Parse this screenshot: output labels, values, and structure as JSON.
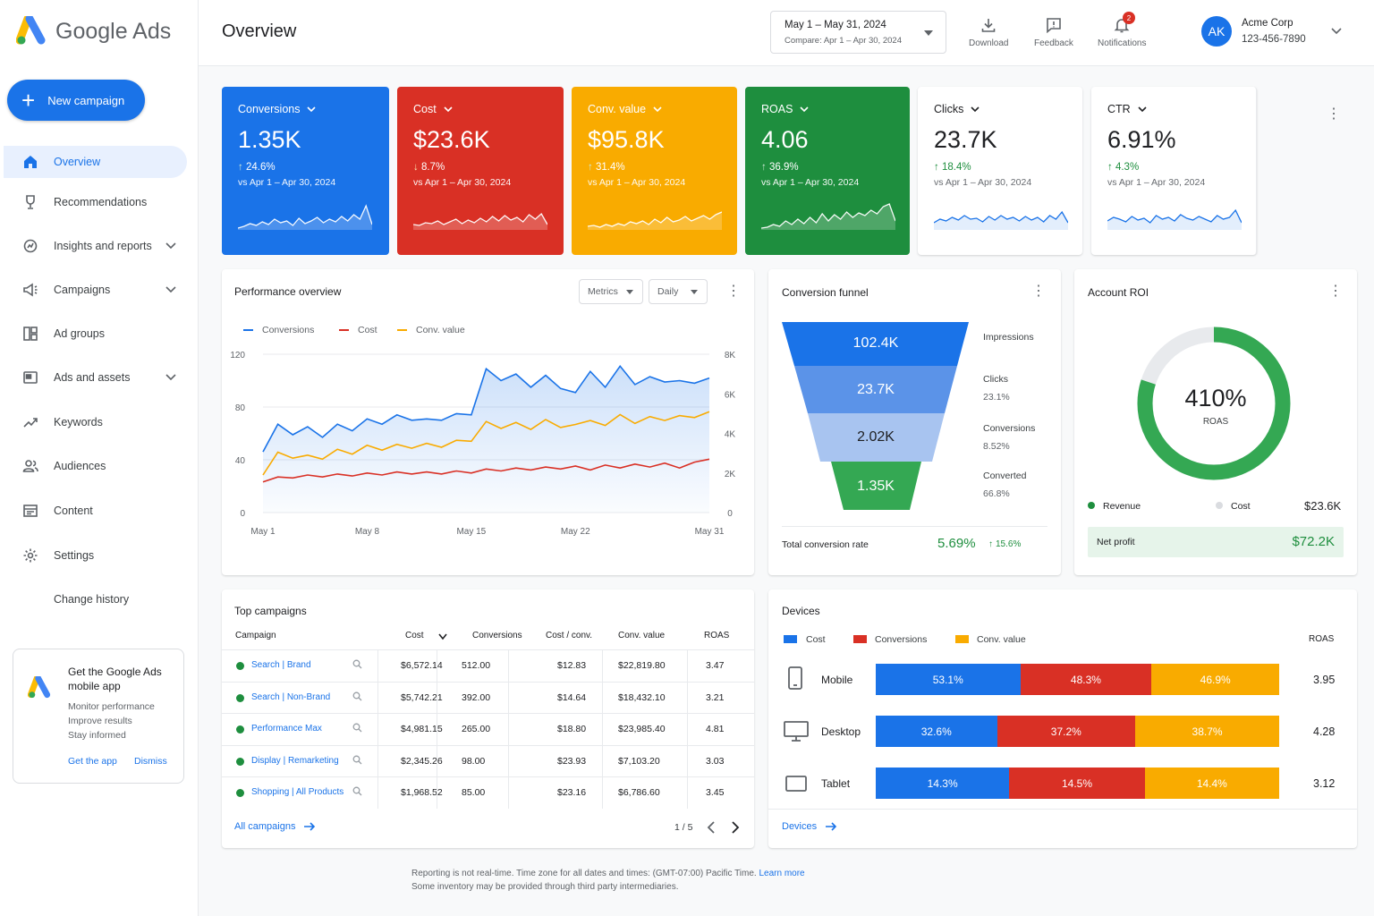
{
  "app": {
    "logo_text": "Google Ads",
    "page_title": "Overview"
  },
  "sidebar": {
    "new_campaign": "New campaign",
    "items": [
      {
        "label": "Overview"
      },
      {
        "label": "Recommendations"
      },
      {
        "label": "Insights and reports"
      },
      {
        "label": "Campaigns"
      },
      {
        "label": "Ad groups"
      },
      {
        "label": "Ads and assets"
      },
      {
        "label": "Keywords"
      },
      {
        "label": "Audiences"
      },
      {
        "label": "Content"
      },
      {
        "label": "Settings"
      },
      {
        "label": "Change history"
      }
    ],
    "promo": {
      "title": "Get the Google Ads mobile app",
      "lines": [
        "Monitor performance",
        "Improve results",
        "Stay informed"
      ],
      "get_app": "Get the app",
      "dismiss": "Dismiss"
    }
  },
  "header": {
    "date_range": "May 1 – May 31, 2024",
    "compare": "Compare: Apr 1 – Apr 30, 2024",
    "download": "Download",
    "feedback": "Feedback",
    "notifications": "Notifications",
    "notification_count": "2",
    "avatar_initials": "AK",
    "account_name": "Acme Corp",
    "account_id": "123-456-7890"
  },
  "kpis": [
    {
      "label": "Conversions",
      "value": "1.35K",
      "delta": "24.6%",
      "vs": "vs Apr 1 – Apr 30, 2024",
      "color": "#1a73e8",
      "dir": "up"
    },
    {
      "label": "Cost",
      "value": "$23.6K",
      "delta": "8.7%",
      "vs": "vs Apr 1 – Apr 30, 2024",
      "color": "#d93025",
      "dir": "down"
    },
    {
      "label": "Conv. value",
      "value": "$95.8K",
      "delta": "31.4%",
      "vs": "vs Apr 1 – Apr 30, 2024",
      "color": "#f9ab00",
      "dir": "up"
    },
    {
      "label": "ROAS",
      "value": "4.06",
      "delta": "36.9%",
      "vs": "vs Apr 1 – Apr 30, 2024",
      "color": "#1e8e3e",
      "dir": "up"
    },
    {
      "label": "Clicks",
      "value": "23.7K",
      "delta": "18.4%",
      "vs": "vs Apr 1 – Apr 30, 2024",
      "color": "#ffffff",
      "dir": "up"
    },
    {
      "label": "CTR",
      "value": "6.91%",
      "delta": "4.3%",
      "vs": "vs Apr 1 – Apr 30, 2024",
      "color": "#ffffff",
      "dir": "up"
    }
  ],
  "performance": {
    "title": "Performance overview",
    "metrics_select": "Metrics",
    "period_select": "Daily"
  },
  "chart_data": {
    "type": "line",
    "x": [
      "May 1",
      "May 2",
      "May 3",
      "May 4",
      "May 5",
      "May 6",
      "May 7",
      "May 8",
      "May 9",
      "May 10",
      "May 11",
      "May 12",
      "May 13",
      "May 14",
      "May 15",
      "May 16",
      "May 17",
      "May 18",
      "May 19",
      "May 20",
      "May 21",
      "May 22",
      "May 23",
      "May 24",
      "May 25",
      "May 26",
      "May 27",
      "May 28",
      "May 29",
      "May 30",
      "May 31"
    ],
    "x_tick_labels": [
      "May 1",
      "May 8",
      "May 15",
      "May 22",
      "May 31"
    ],
    "series": [
      {
        "name": "Conversions",
        "axis": "left",
        "color": "#1a73e8",
        "values": [
          46,
          67,
          59,
          65,
          57,
          67,
          62,
          71,
          67,
          74,
          70,
          71,
          70,
          75,
          74,
          109,
          100,
          105,
          95,
          104,
          94,
          91,
          107,
          95,
          111,
          97,
          103,
          99,
          100,
          98,
          102
        ]
      },
      {
        "name": "Cost",
        "axis": "right",
        "color": "#d93025",
        "values": [
          1550,
          1800,
          1750,
          1900,
          1800,
          1950,
          1850,
          2000,
          1900,
          2050,
          1950,
          2050,
          1950,
          2100,
          2000,
          2200,
          2100,
          2250,
          2150,
          2300,
          2200,
          2350,
          2150,
          2400,
          2250,
          2450,
          2300,
          2500,
          2250,
          2550,
          2700
        ]
      },
      {
        "name": "Conv. value",
        "axis": "right",
        "color": "#f9ab00",
        "values": [
          1900,
          3050,
          2750,
          2900,
          2700,
          3200,
          2950,
          3400,
          3150,
          3450,
          3250,
          3500,
          3300,
          3650,
          3600,
          4600,
          4250,
          4550,
          4200,
          4700,
          4300,
          4450,
          4650,
          4400,
          4950,
          4500,
          4850,
          4650,
          4900,
          4800,
          5100
        ]
      }
    ],
    "y_left": {
      "ticks": [
        0,
        40,
        80,
        120
      ],
      "ylim": [
        0,
        120
      ]
    },
    "y_right": {
      "ticks": [
        "0",
        "2K",
        "4K",
        "6K",
        "8K"
      ],
      "ylim": [
        0,
        8000
      ]
    },
    "grid": true,
    "legend": "top-left"
  },
  "funnel": {
    "title": "Conversion funnel",
    "stages": [
      {
        "value": "102.4K",
        "label": "Impressions",
        "pct": ""
      },
      {
        "value": "23.7K",
        "label": "Clicks",
        "pct": "23.1%"
      },
      {
        "value": "2.02K",
        "label": "Conversions",
        "pct": "8.52%"
      },
      {
        "value": "1.35K",
        "label": "Converted",
        "pct": "66.8%"
      }
    ],
    "total_label": "Total conversion rate",
    "total_value": "5.69%",
    "total_delta": "15.6%"
  },
  "roi": {
    "title": "Account ROI",
    "value": "410%",
    "sub": "ROAS",
    "revenue_share": 0.8,
    "revenue_label": "Revenue",
    "cost_label": "Cost",
    "cost_value": "$23.6K",
    "net_label": "Net profit",
    "net_value": "$72.2K"
  },
  "campaigns": {
    "title": "Top campaigns",
    "headers": [
      "Campaign",
      "Cost",
      "Conversions",
      "Cost / conv.",
      "Conv. value",
      "ROAS"
    ],
    "rows": [
      {
        "name": "Search | Brand",
        "cost": "$6,572.14",
        "conv": "512.00",
        "cpc": "$12.83",
        "value": "$22,819.80",
        "roas": "3.47"
      },
      {
        "name": "Search | Non-Brand",
        "cost": "$5,742.21",
        "conv": "392.00",
        "cpc": "$14.64",
        "value": "$18,432.10",
        "roas": "3.21"
      },
      {
        "name": "Performance Max",
        "cost": "$4,981.15",
        "conv": "265.00",
        "cpc": "$18.80",
        "value": "$23,985.40",
        "roas": "4.81"
      },
      {
        "name": "Display | Remarketing",
        "cost": "$2,345.26",
        "conv": "98.00",
        "cpc": "$23.93",
        "value": "$7,103.20",
        "roas": "3.03"
      },
      {
        "name": "Shopping | All Products",
        "cost": "$1,968.52",
        "conv": "85.00",
        "cpc": "$23.16",
        "value": "$6,786.60",
        "roas": "3.45"
      }
    ],
    "all_link": "All campaigns",
    "pagination": "1 / 5"
  },
  "devices": {
    "title": "Devices",
    "legend": [
      "Cost",
      "Conversions",
      "Conv. value"
    ],
    "roas_header": "ROAS",
    "rows": [
      {
        "name": "Mobile",
        "cost": 53.1,
        "conv": 48.3,
        "value": 46.9,
        "roas": "3.95"
      },
      {
        "name": "Desktop",
        "cost": 32.6,
        "conv": 37.2,
        "value": 38.7,
        "roas": "4.28"
      },
      {
        "name": "Tablet",
        "cost": 14.3,
        "conv": 14.5,
        "value": 14.4,
        "roas": "3.12"
      }
    ],
    "link": "Devices"
  },
  "footer": {
    "line1": "Reporting is not real-time. Time zone for all dates and times: (GMT-07:00) Pacific Time.",
    "learn_more": "Learn more",
    "line2": "Some inventory may be provided through third party intermediaries."
  },
  "colors": {
    "blue": "#1a73e8",
    "red": "#d93025",
    "yellow": "#f9ab00",
    "green": "#1e8e3e"
  }
}
